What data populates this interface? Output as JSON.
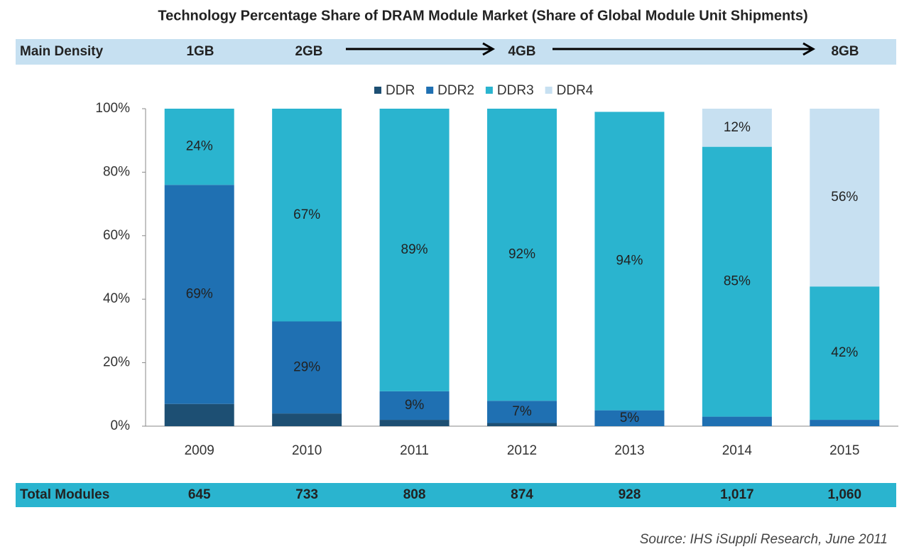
{
  "chart_data": {
    "type": "stacked-bar",
    "title": "Technology Percentage Share of DRAM Module Market (Share of Global Module Unit Shipments)",
    "density_row": {
      "label": "Main Density",
      "items": [
        "1GB",
        "2GB",
        "4GB",
        "8GB"
      ]
    },
    "categories": [
      "2009",
      "2010",
      "2011",
      "2012",
      "2013",
      "2014",
      "2015"
    ],
    "series": [
      {
        "name": "DDR",
        "color": "#1d4f73",
        "label_color": "#ffffff",
        "values": [
          7,
          4,
          2,
          1,
          0,
          0,
          0
        ],
        "value_labels": [
          null,
          null,
          null,
          null,
          null,
          null,
          null
        ]
      },
      {
        "name": "DDR2",
        "color": "#1f70b2",
        "label_color": "#ffffff",
        "values": [
          69,
          29,
          9,
          7,
          5,
          3,
          2
        ],
        "value_labels": [
          "69%",
          "29%",
          "9%",
          "7%",
          "5%",
          null,
          null
        ]
      },
      {
        "name": "DDR3",
        "color": "#2ab4cf",
        "label_color": "#1a3550",
        "values": [
          24,
          67,
          89,
          92,
          94,
          85,
          42
        ],
        "value_labels": [
          "24%",
          "67%",
          "89%",
          "92%",
          "94%",
          "85%",
          "42%"
        ]
      },
      {
        "name": "DDR4",
        "color": "#c7e0f1",
        "label_color": "#1a3550",
        "values": [
          0,
          0,
          0,
          0,
          0,
          12,
          56
        ],
        "value_labels": [
          null,
          null,
          null,
          null,
          null,
          "12%",
          "56%"
        ]
      }
    ],
    "ylim": [
      0,
      100
    ],
    "yticks": [
      {
        "value": 0,
        "label": "0%"
      },
      {
        "value": 20,
        "label": "20%"
      },
      {
        "value": 40,
        "label": "40%"
      },
      {
        "value": 60,
        "label": "60%"
      },
      {
        "value": 80,
        "label": "80%"
      },
      {
        "value": 100,
        "label": "100%"
      }
    ],
    "grid": false,
    "legend": "top",
    "total_row": {
      "label": "Total Modules",
      "values": [
        645,
        733,
        808,
        874,
        928,
        1017,
        1060
      ],
      "value_labels": [
        null,
        null,
        null,
        null,
        null,
        "1,017",
        "1,060"
      ]
    },
    "source": "Source: IHS iSuppli Research, June 2011"
  }
}
